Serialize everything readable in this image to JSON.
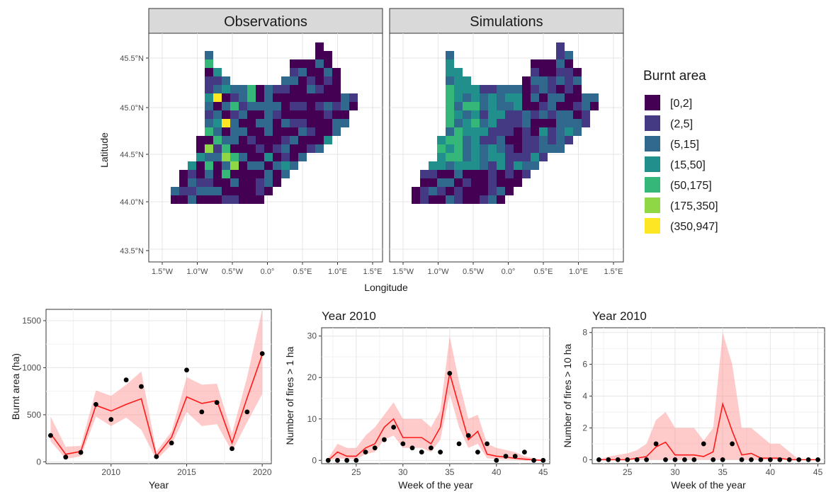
{
  "chart_data": [
    {
      "type": "heatmap",
      "subtype": "choropleth-map",
      "facets": [
        "Observations",
        "Simulations"
      ],
      "xlabel": "Longitude",
      "ylabel": "Latitude",
      "x_ticks": [
        "1.5°W",
        "1.0°W",
        "0.5°W",
        "0.0°",
        "0.5°E",
        "1.0°E",
        "1.5°E"
      ],
      "y_ticks": [
        "43.5°N",
        "44.0°N",
        "44.5°N",
        "45.0°N",
        "45.5°N"
      ],
      "legend": {
        "title": "Burnt area",
        "position": "right",
        "labels": [
          "[0,2]",
          "(2,5]",
          "(5,15]",
          "(15,50]",
          "(50,175]",
          "(175,350]",
          "(350,947]"
        ],
        "colors": [
          "#440154",
          "#443A83",
          "#31688E",
          "#21908C",
          "#35B779",
          "#8FD744",
          "#FDE725"
        ]
      }
    },
    {
      "type": "line",
      "title": "",
      "xlabel": "Year",
      "ylabel": "Burnt area (ha)",
      "xlim": [
        2005.7,
        2020.6
      ],
      "ylim": [
        -20,
        1620
      ],
      "x_ticks": [
        2010,
        2015,
        2020
      ],
      "y_ticks": [
        0,
        500,
        1000,
        1500
      ],
      "x": [
        2006,
        2007,
        2008,
        2009,
        2010,
        2011,
        2012,
        2013,
        2014,
        2015,
        2016,
        2017,
        2018,
        2019,
        2020
      ],
      "sim_median": [
        300,
        80,
        110,
        600,
        540,
        610,
        670,
        60,
        260,
        690,
        620,
        650,
        200,
        680,
        1140
      ],
      "sim_lower": [
        220,
        30,
        60,
        480,
        380,
        470,
        340,
        20,
        180,
        530,
        380,
        400,
        110,
        420,
        720
      ],
      "sim_upper": [
        480,
        160,
        170,
        760,
        700,
        820,
        960,
        110,
        320,
        900,
        820,
        830,
        300,
        900,
        1620
      ],
      "observed": [
        280,
        50,
        100,
        610,
        450,
        870,
        800,
        55,
        200,
        975,
        530,
        630,
        140,
        530,
        1150
      ]
    },
    {
      "type": "line",
      "title": "Year 2010",
      "xlabel": "Week of the year",
      "ylabel": "Number of fires > 1 ha",
      "xlim": [
        21.3,
        45.7
      ],
      "ylim": [
        -0.8,
        32
      ],
      "x_ticks": [
        25,
        30,
        35,
        40,
        45
      ],
      "y_ticks": [
        0,
        10,
        20,
        30
      ],
      "x": [
        22,
        23,
        24,
        25,
        26,
        27,
        28,
        29,
        30,
        31,
        32,
        33,
        34,
        35,
        36,
        37,
        38,
        39,
        40,
        41,
        42,
        43,
        44,
        45
      ],
      "sim_median": [
        0,
        2,
        1,
        1,
        3,
        4,
        8,
        10,
        5.5,
        5.5,
        5.5,
        4,
        8,
        21,
        13,
        5,
        7,
        1.5,
        1,
        0.8,
        0.5,
        0.3,
        0.1,
        0
      ],
      "sim_lower": [
        0,
        0.5,
        0.3,
        0.3,
        1.5,
        2,
        5,
        6,
        3,
        3,
        3,
        2,
        5,
        16,
        8,
        3,
        4,
        0.5,
        0.3,
        0.2,
        0.1,
        0,
        0,
        0
      ],
      "sim_upper": [
        0.5,
        4,
        3,
        3,
        6,
        8,
        11,
        14,
        10,
        10,
        10,
        8,
        12,
        30,
        19,
        10,
        11,
        4,
        3,
        2.5,
        2,
        1,
        0.5,
        0
      ],
      "observed": [
        0,
        0,
        0,
        0,
        2,
        3,
        5,
        8,
        4,
        3,
        2,
        3,
        2,
        21,
        4,
        6,
        2,
        4,
        0,
        1,
        1,
        2,
        0,
        0
      ]
    },
    {
      "type": "line",
      "title": "Year 2010",
      "xlabel": "Week of the year",
      "ylabel": "Number of fires > 10 ha",
      "xlim": [
        21.3,
        45.7
      ],
      "ylim": [
        -0.25,
        8.3
      ],
      "x_ticks": [
        25,
        30,
        35,
        40,
        45
      ],
      "y_ticks": [
        0,
        2,
        4,
        6,
        8
      ],
      "x": [
        22,
        23,
        24,
        25,
        26,
        27,
        28,
        29,
        30,
        31,
        32,
        33,
        34,
        35,
        36,
        37,
        38,
        39,
        40,
        41,
        42,
        43,
        44,
        45
      ],
      "sim_median": [
        0,
        0,
        0,
        0,
        0.1,
        0.2,
        0.8,
        1.1,
        0.3,
        0.3,
        0.3,
        0.2,
        0.5,
        3.5,
        1.8,
        0.3,
        0.4,
        0.1,
        0.1,
        0.1,
        0,
        0,
        0,
        0
      ],
      "sim_lower": [
        0,
        0,
        0,
        0,
        0,
        0,
        0,
        0,
        0,
        0,
        0,
        0,
        0,
        0,
        0,
        0,
        0,
        0,
        0,
        0,
        0,
        0,
        0,
        0
      ],
      "sim_upper": [
        0,
        0.2,
        0.3,
        0.4,
        0.6,
        1,
        2.5,
        3,
        2,
        2,
        2,
        1.2,
        2,
        8,
        6,
        2,
        2,
        1.5,
        1,
        1,
        0.5,
        0,
        0,
        0
      ],
      "observed": [
        0,
        0,
        0,
        0,
        0,
        0,
        1,
        0,
        0,
        0,
        0,
        1,
        0,
        0,
        1,
        0,
        0,
        0,
        0,
        0,
        0,
        0,
        0,
        0
      ]
    }
  ]
}
